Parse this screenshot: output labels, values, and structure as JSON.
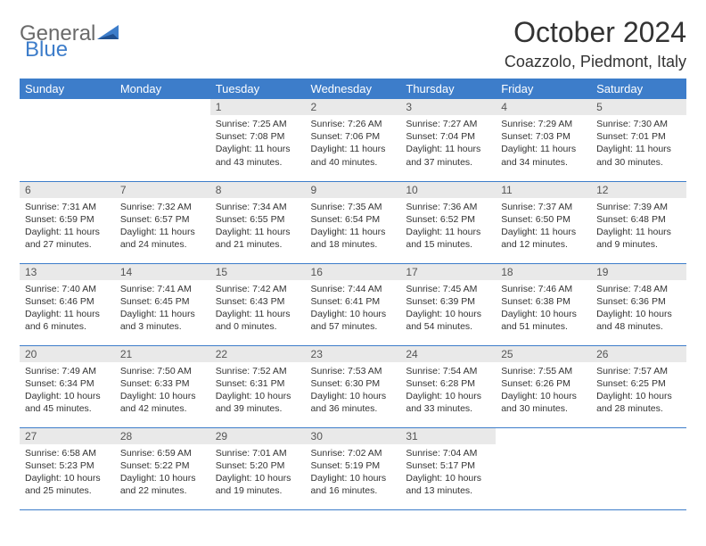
{
  "logo": {
    "general": "General",
    "blue": "Blue"
  },
  "title": "October 2024",
  "location": "Coazzolo, Piedmont, Italy",
  "colors": {
    "header_bg": "#3d7dca",
    "header_text": "#ffffff",
    "daynum_bg": "#e9e9e9",
    "border": "#3d7dca",
    "body_bg": "#ffffff",
    "text": "#333333",
    "logo_gray": "#6a6a6a",
    "logo_blue": "#3d7dca"
  },
  "daysOfWeek": [
    "Sunday",
    "Monday",
    "Tuesday",
    "Wednesday",
    "Thursday",
    "Friday",
    "Saturday"
  ],
  "weeks": [
    [
      null,
      null,
      {
        "n": "1",
        "sr": "7:25 AM",
        "ss": "7:08 PM",
        "dl": "11 hours and 43 minutes."
      },
      {
        "n": "2",
        "sr": "7:26 AM",
        "ss": "7:06 PM",
        "dl": "11 hours and 40 minutes."
      },
      {
        "n": "3",
        "sr": "7:27 AM",
        "ss": "7:04 PM",
        "dl": "11 hours and 37 minutes."
      },
      {
        "n": "4",
        "sr": "7:29 AM",
        "ss": "7:03 PM",
        "dl": "11 hours and 34 minutes."
      },
      {
        "n": "5",
        "sr": "7:30 AM",
        "ss": "7:01 PM",
        "dl": "11 hours and 30 minutes."
      }
    ],
    [
      {
        "n": "6",
        "sr": "7:31 AM",
        "ss": "6:59 PM",
        "dl": "11 hours and 27 minutes."
      },
      {
        "n": "7",
        "sr": "7:32 AM",
        "ss": "6:57 PM",
        "dl": "11 hours and 24 minutes."
      },
      {
        "n": "8",
        "sr": "7:34 AM",
        "ss": "6:55 PM",
        "dl": "11 hours and 21 minutes."
      },
      {
        "n": "9",
        "sr": "7:35 AM",
        "ss": "6:54 PM",
        "dl": "11 hours and 18 minutes."
      },
      {
        "n": "10",
        "sr": "7:36 AM",
        "ss": "6:52 PM",
        "dl": "11 hours and 15 minutes."
      },
      {
        "n": "11",
        "sr": "7:37 AM",
        "ss": "6:50 PM",
        "dl": "11 hours and 12 minutes."
      },
      {
        "n": "12",
        "sr": "7:39 AM",
        "ss": "6:48 PM",
        "dl": "11 hours and 9 minutes."
      }
    ],
    [
      {
        "n": "13",
        "sr": "7:40 AM",
        "ss": "6:46 PM",
        "dl": "11 hours and 6 minutes."
      },
      {
        "n": "14",
        "sr": "7:41 AM",
        "ss": "6:45 PM",
        "dl": "11 hours and 3 minutes."
      },
      {
        "n": "15",
        "sr": "7:42 AM",
        "ss": "6:43 PM",
        "dl": "11 hours and 0 minutes."
      },
      {
        "n": "16",
        "sr": "7:44 AM",
        "ss": "6:41 PM",
        "dl": "10 hours and 57 minutes."
      },
      {
        "n": "17",
        "sr": "7:45 AM",
        "ss": "6:39 PM",
        "dl": "10 hours and 54 minutes."
      },
      {
        "n": "18",
        "sr": "7:46 AM",
        "ss": "6:38 PM",
        "dl": "10 hours and 51 minutes."
      },
      {
        "n": "19",
        "sr": "7:48 AM",
        "ss": "6:36 PM",
        "dl": "10 hours and 48 minutes."
      }
    ],
    [
      {
        "n": "20",
        "sr": "7:49 AM",
        "ss": "6:34 PM",
        "dl": "10 hours and 45 minutes."
      },
      {
        "n": "21",
        "sr": "7:50 AM",
        "ss": "6:33 PM",
        "dl": "10 hours and 42 minutes."
      },
      {
        "n": "22",
        "sr": "7:52 AM",
        "ss": "6:31 PM",
        "dl": "10 hours and 39 minutes."
      },
      {
        "n": "23",
        "sr": "7:53 AM",
        "ss": "6:30 PM",
        "dl": "10 hours and 36 minutes."
      },
      {
        "n": "24",
        "sr": "7:54 AM",
        "ss": "6:28 PM",
        "dl": "10 hours and 33 minutes."
      },
      {
        "n": "25",
        "sr": "7:55 AM",
        "ss": "6:26 PM",
        "dl": "10 hours and 30 minutes."
      },
      {
        "n": "26",
        "sr": "7:57 AM",
        "ss": "6:25 PM",
        "dl": "10 hours and 28 minutes."
      }
    ],
    [
      {
        "n": "27",
        "sr": "6:58 AM",
        "ss": "5:23 PM",
        "dl": "10 hours and 25 minutes."
      },
      {
        "n": "28",
        "sr": "6:59 AM",
        "ss": "5:22 PM",
        "dl": "10 hours and 22 minutes."
      },
      {
        "n": "29",
        "sr": "7:01 AM",
        "ss": "5:20 PM",
        "dl": "10 hours and 19 minutes."
      },
      {
        "n": "30",
        "sr": "7:02 AM",
        "ss": "5:19 PM",
        "dl": "10 hours and 16 minutes."
      },
      {
        "n": "31",
        "sr": "7:04 AM",
        "ss": "5:17 PM",
        "dl": "10 hours and 13 minutes."
      },
      null,
      null
    ]
  ],
  "labels": {
    "sunrise": "Sunrise:",
    "sunset": "Sunset:",
    "daylight": "Daylight:"
  }
}
